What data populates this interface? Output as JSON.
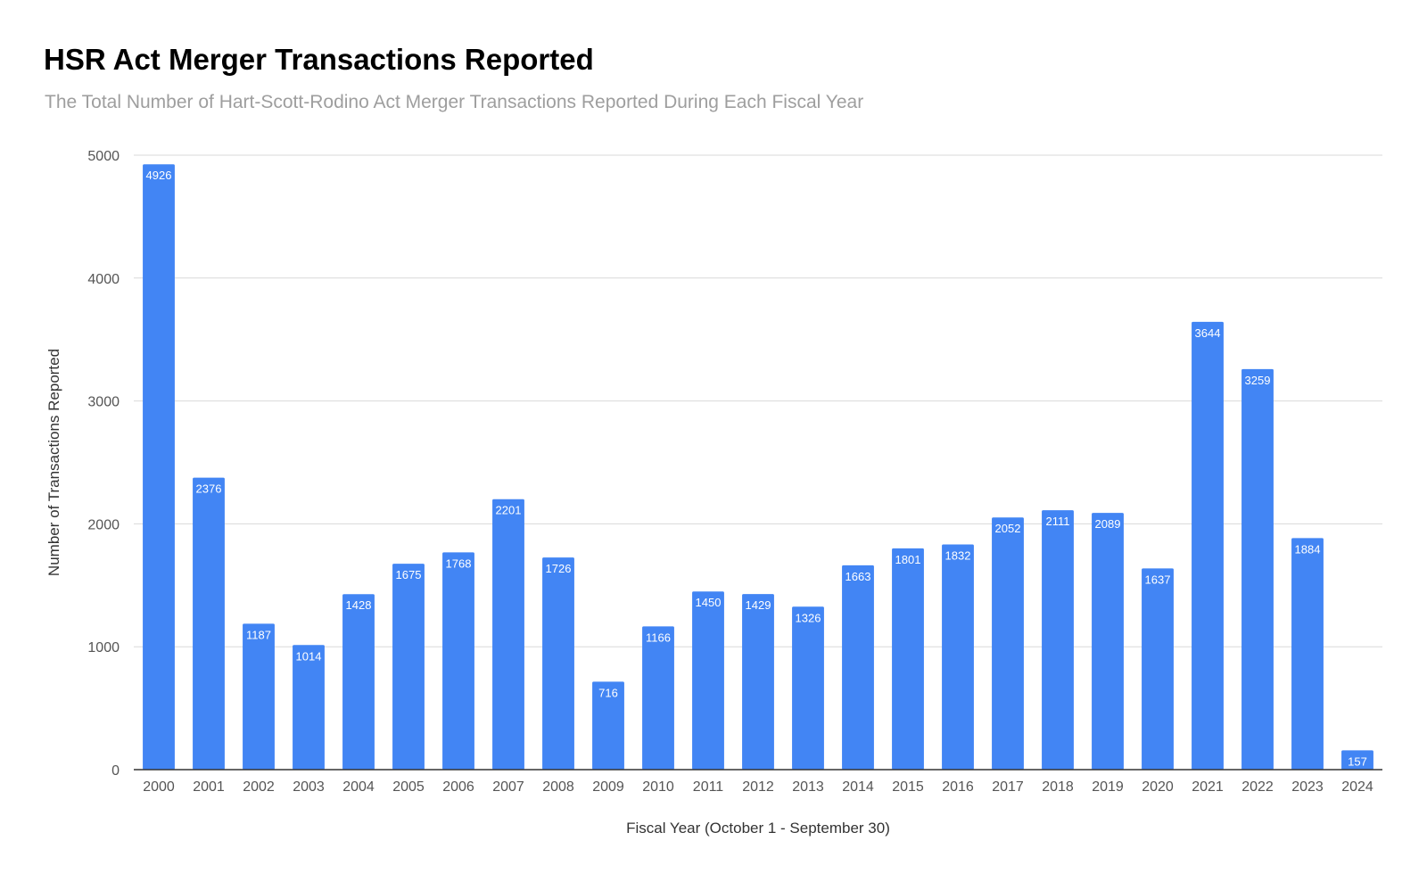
{
  "chart_data": {
    "type": "bar",
    "title": "HSR Act Merger Transactions Reported",
    "subtitle": "The Total Number of Hart-Scott-Rodino Act Merger Transactions Reported During Each Fiscal Year",
    "xlabel": "Fiscal Year (October 1 - September 30)",
    "ylabel": "Number of Transactions Reported",
    "categories": [
      "2000",
      "2001",
      "2002",
      "2003",
      "2004",
      "2005",
      "2006",
      "2007",
      "2008",
      "2009",
      "2010",
      "2011",
      "2012",
      "2013",
      "2014",
      "2015",
      "2016",
      "2017",
      "2018",
      "2019",
      "2020",
      "2021",
      "2022",
      "2023",
      "2024"
    ],
    "values": [
      4926,
      2376,
      1187,
      1014,
      1428,
      1675,
      1768,
      2201,
      1726,
      716,
      1166,
      1450,
      1429,
      1326,
      1663,
      1801,
      1832,
      2052,
      2111,
      2089,
      1637,
      3644,
      3259,
      1884,
      157
    ],
    "ylim": [
      0,
      5000
    ],
    "yticks": [
      0,
      1000,
      2000,
      3000,
      4000,
      5000
    ],
    "grid": true,
    "legend": "none",
    "data_labels": "inside-top",
    "colors": {
      "bar": "#4285f4",
      "label": "#ffffff",
      "grid": "#d9d9d9",
      "axis": "#333333",
      "tick_text": "#555555"
    }
  }
}
